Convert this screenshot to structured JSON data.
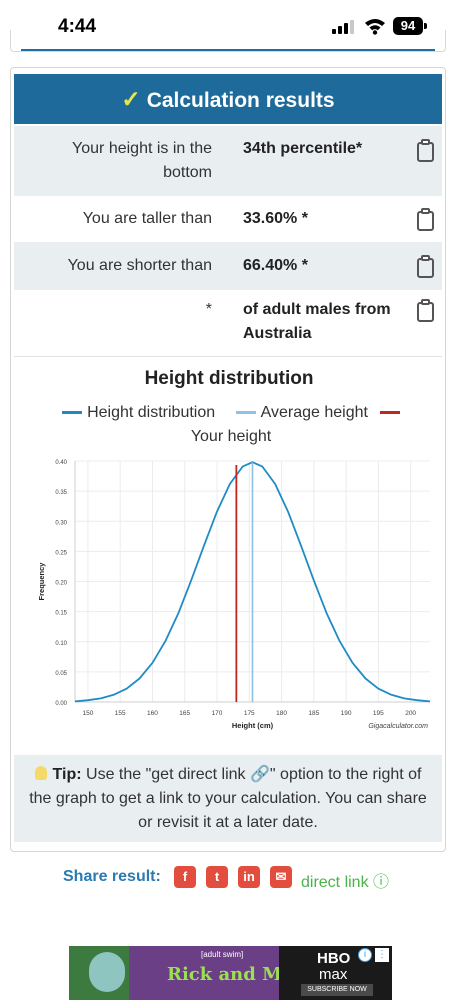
{
  "status_bar": {
    "time": "4:44",
    "battery": "94"
  },
  "results": {
    "header": "Calculation results",
    "rows": [
      {
        "label": "Your height is in the bottom",
        "value": "34th percentile*"
      },
      {
        "label": "You are taller than",
        "value": "33.60% *"
      },
      {
        "label": "You are shorter than",
        "value": "66.40% *"
      },
      {
        "label": "*",
        "value": "of adult males from Australia"
      }
    ]
  },
  "chart_data": {
    "type": "line",
    "title": "Height distribution",
    "legend": [
      {
        "name": "Height distribution",
        "color": "#1f8bc5"
      },
      {
        "name": "Average height",
        "color": "#8cc2e4"
      },
      {
        "name": "Your height",
        "color": "#c0271e"
      }
    ],
    "xlabel": "Height (cm)",
    "ylabel": "Frequency",
    "watermark": "Gigacalculator.com",
    "xlim": [
      148,
      203
    ],
    "ylim": [
      0,
      0.4
    ],
    "x_ticks": [
      "150",
      "155",
      "160",
      "165",
      "170",
      "175",
      "180",
      "185",
      "190",
      "195",
      "200"
    ],
    "y_ticks": [
      "0.00",
      "0.05",
      "0.10",
      "0.15",
      "0.20",
      "0.25",
      "0.30",
      "0.35",
      "0.40"
    ],
    "series": [
      {
        "name": "Height distribution",
        "x": [
          148,
          150,
          152,
          154,
          156,
          158,
          160,
          162,
          164,
          166,
          168,
          170,
          172,
          174,
          175.5,
          177,
          179,
          181,
          183,
          185,
          187,
          189,
          191,
          193,
          195,
          197,
          199,
          201,
          203
        ],
        "y": [
          0.001,
          0.003,
          0.006,
          0.012,
          0.022,
          0.039,
          0.065,
          0.101,
          0.147,
          0.202,
          0.26,
          0.316,
          0.362,
          0.391,
          0.398,
          0.391,
          0.362,
          0.316,
          0.26,
          0.202,
          0.147,
          0.101,
          0.065,
          0.039,
          0.022,
          0.012,
          0.006,
          0.003,
          0.001
        ]
      }
    ],
    "average_height": 175.5,
    "your_height": 173
  },
  "tip": {
    "label": "Tip:",
    "text": "Use the \"get direct link 🔗\" option to the right of the graph to get a link to your calculation. You can share or revisit it at a later date."
  },
  "share": {
    "label": "Share result:",
    "direct_link": "direct link ⓘ",
    "buttons": [
      "facebook-icon",
      "twitter-icon",
      "linkedin-icon",
      "email-icon"
    ]
  },
  "ad": {
    "brand_small": "[adult swim]",
    "title": "Rick and Morty",
    "hbo": "HBO",
    "max": "max",
    "subscribe": "SUBSCRIBE NOW"
  }
}
